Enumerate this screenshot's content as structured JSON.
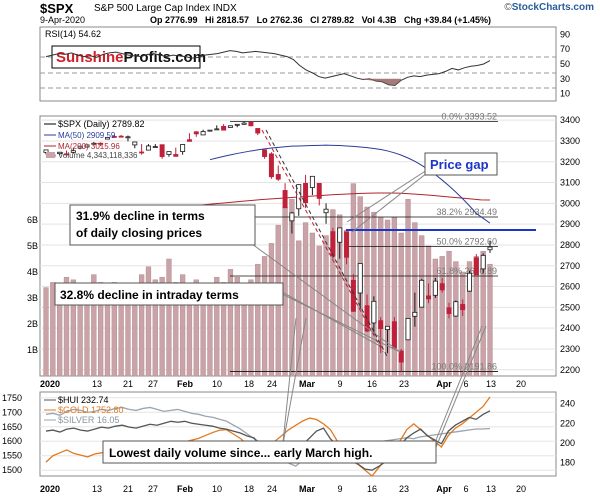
{
  "header": {
    "symbol": "$SPX",
    "name": "S&P 500 Large Cap Index",
    "exchange": "INDX",
    "date": "9-Apr-2020",
    "quote": "Op 2776.99   Hi 2818.57   Lo 2762.36   Cl 2789.82   Vol 4.3B   Chg +39.84 (+1.45%)",
    "brand_pre": "©",
    "brand": "StockCharts.com"
  },
  "rsi_panel": {
    "label": "RSI(14) 54.62",
    "watermark_a": "Sunshine",
    "watermark_b": "Profits.com",
    "ticks": [
      "90",
      "70",
      "50",
      "30",
      "10"
    ]
  },
  "main_panel": {
    "legend": [
      "$SPX (Daily) 2789.82",
      "MA(50) 2909.59",
      "MA(200) 3015.96",
      "Volume 4,343,118,336"
    ],
    "y_ticks": [
      "3400",
      "3300",
      "3200",
      "3100",
      "3000",
      "2900",
      "2800",
      "2700",
      "2600",
      "2500",
      "2400",
      "2300",
      "2200"
    ],
    "volume_ticks": [
      "6B",
      "5B",
      "4B",
      "3B",
      "2B",
      "1B"
    ],
    "fib_labels": [
      "0.0% 3393.52",
      "38.2% 2934.49",
      "50.0% 2792.60",
      "61.8% 2650.89",
      "100.0% 2191.86"
    ],
    "annotations": {
      "price_gap": "Price gap",
      "decline_closing_1": "31.9% decline in terms",
      "decline_closing_2": "of daily closing prices",
      "decline_intraday": "32.8% decline in intraday terms"
    }
  },
  "x_axis": [
    "2020",
    "13",
    "21",
    "27",
    "Feb",
    "10",
    "18",
    "24",
    "Mar",
    "9",
    "16",
    "23",
    "Apr",
    "6",
    "13",
    "20"
  ],
  "lower_panel": {
    "legend": [
      "$HUI 232.74",
      "$GOLD 1752.80",
      "$SILVER 16.05"
    ],
    "left_ticks": [
      "1750",
      "1700",
      "1650",
      "1600",
      "1550",
      "1500"
    ],
    "right_ticks": [
      "240",
      "220",
      "200",
      "180"
    ],
    "annotation": "Lowest daily volume since... early March high."
  },
  "colors": {
    "up": "#1a1a1a",
    "down": "#c0203a",
    "ma50": "#2a3c9a",
    "ma200": "#b0242e",
    "volume": "#c9a3a7",
    "hui": "#555555",
    "gold": "#e07a1f",
    "silver": "#9aa5b0",
    "gap_line": "#1a35c8",
    "gap_text": "#1a35c8"
  },
  "chart_data": [
    {
      "type": "line",
      "title": "RSI(14)",
      "ylim": [
        0,
        100
      ],
      "series": [
        {
          "name": "RSI(14) 54.62",
          "values": [
            60,
            62,
            64,
            63,
            65,
            62,
            60,
            61,
            59,
            63,
            65,
            66,
            64,
            62,
            61,
            60,
            63,
            64,
            62,
            60,
            62,
            61,
            60,
            58,
            59,
            62,
            63,
            64,
            66,
            68,
            67,
            65,
            66,
            67,
            66,
            65,
            64,
            62,
            60,
            56,
            48,
            42,
            38,
            33,
            31,
            33,
            35,
            37,
            34,
            31,
            29,
            30,
            27,
            26,
            22,
            21,
            28,
            32,
            34,
            33,
            35,
            36,
            37,
            40,
            44,
            42,
            45,
            47,
            48,
            50,
            54.62
          ]
        }
      ]
    },
    {
      "type": "candlestick",
      "title": "$SPX (Daily) 2789.82",
      "ylim": [
        2170,
        3420
      ],
      "candles": [
        {
          "o": 3245,
          "h": 3258,
          "l": 3235,
          "c": 3257
        },
        {
          "o": 3225,
          "h": 3246,
          "l": 3220,
          "c": 3234
        },
        {
          "o": 3239,
          "h": 3246,
          "l": 3232,
          "c": 3246
        },
        {
          "o": 3238,
          "h": 3254,
          "l": 3235,
          "c": 3237
        },
        {
          "o": 3245,
          "h": 3267,
          "l": 3239,
          "c": 3253
        },
        {
          "o": 3266,
          "h": 3276,
          "l": 3260,
          "c": 3275
        },
        {
          "o": 3271,
          "h": 3282,
          "l": 3268,
          "c": 3281
        },
        {
          "o": 3285,
          "h": 3295,
          "l": 3282,
          "c": 3289
        },
        {
          "o": 3289,
          "h": 3294,
          "l": 3275,
          "c": 3288
        },
        {
          "o": 3309,
          "h": 3318,
          "l": 3307,
          "c": 3317
        },
        {
          "o": 3322,
          "h": 3330,
          "l": 3317,
          "c": 3321
        },
        {
          "o": 3323,
          "h": 3329,
          "l": 3320,
          "c": 3321
        },
        {
          "o": 3316,
          "h": 3326,
          "l": 3298,
          "c": 3320
        },
        {
          "o": 3281,
          "h": 3296,
          "l": 3265,
          "c": 3295
        },
        {
          "o": 3247,
          "h": 3285,
          "l": 3234,
          "c": 3244
        },
        {
          "o": 3256,
          "h": 3285,
          "l": 3255,
          "c": 3276
        },
        {
          "o": 3271,
          "h": 3285,
          "l": 3270,
          "c": 3273
        },
        {
          "o": 3282,
          "h": 3282,
          "l": 3214,
          "c": 3225
        },
        {
          "o": 3235,
          "h": 3247,
          "l": 3224,
          "c": 3249
        },
        {
          "o": 3235,
          "h": 3268,
          "l": 3235,
          "c": 3226
        },
        {
          "o": 3249,
          "h": 3285,
          "l": 3234,
          "c": 3283
        },
        {
          "o": 3306,
          "h": 3337,
          "l": 3300,
          "c": 3298
        },
        {
          "o": 3344,
          "h": 3347,
          "l": 3320,
          "c": 3334
        },
        {
          "o": 3329,
          "h": 3354,
          "l": 3329,
          "c": 3345
        },
        {
          "o": 3348,
          "h": 3352,
          "l": 3345,
          "c": 3352
        },
        {
          "o": 3358,
          "h": 3375,
          "l": 3355,
          "c": 3358
        },
        {
          "o": 3370,
          "h": 3381,
          "l": 3356,
          "c": 3352
        },
        {
          "o": 3365,
          "h": 3375,
          "l": 3366,
          "c": 3373
        },
        {
          "o": 3378,
          "h": 3381,
          "l": 3366,
          "c": 3380
        },
        {
          "o": 3380,
          "h": 3393,
          "l": 3378,
          "c": 3386
        },
        {
          "o": 3390,
          "h": 3393,
          "l": 3370,
          "c": 3373
        },
        {
          "o": 3360,
          "h": 3361,
          "l": 3328,
          "c": 3338
        },
        {
          "o": 3257,
          "h": 3259,
          "l": 3214,
          "c": 3225
        },
        {
          "o": 3238,
          "h": 3246,
          "l": 3118,
          "c": 3128
        },
        {
          "o": 3139,
          "h": 3182,
          "l": 3108,
          "c": 3116
        },
        {
          "o": 3062,
          "h": 3097,
          "l": 2977,
          "c": 2979
        },
        {
          "o": 2916,
          "h": 2959,
          "l": 2855,
          "c": 2954
        },
        {
          "o": 2974,
          "h": 3091,
          "l": 2940,
          "c": 3090
        },
        {
          "o": 3096,
          "h": 3137,
          "l": 2977,
          "c": 3003
        },
        {
          "o": 3076,
          "h": 3131,
          "l": 3040,
          "c": 3130
        },
        {
          "o": 3096,
          "h": 3098,
          "l": 2990,
          "c": 3024
        },
        {
          "o": 2955,
          "h": 3000,
          "l": 2902,
          "c": 2972
        },
        {
          "o": 2864,
          "h": 2883,
          "l": 2734,
          "c": 2747
        },
        {
          "o": 2813,
          "h": 2882,
          "l": 2734,
          "c": 2882
        },
        {
          "o": 2863,
          "h": 2863,
          "l": 2707,
          "c": 2741
        },
        {
          "o": 2630,
          "h": 2660,
          "l": 2478,
          "c": 2481
        },
        {
          "o": 2569,
          "h": 2711,
          "l": 2492,
          "c": 2711
        },
        {
          "o": 2508,
          "h": 2562,
          "l": 2381,
          "c": 2386
        },
        {
          "o": 2425,
          "h": 2553,
          "l": 2367,
          "c": 2529
        },
        {
          "o": 2436,
          "h": 2453,
          "l": 2281,
          "c": 2398
        },
        {
          "o": 2393,
          "h": 2410,
          "l": 2280,
          "c": 2409
        },
        {
          "o": 2431,
          "h": 2453,
          "l": 2295,
          "c": 2305
        },
        {
          "o": 2290,
          "h": 2300,
          "l": 2192,
          "c": 2237
        },
        {
          "o": 2344,
          "h": 2449,
          "l": 2344,
          "c": 2447
        },
        {
          "o": 2457,
          "h": 2571,
          "l": 2407,
          "c": 2476
        },
        {
          "o": 2501,
          "h": 2637,
          "l": 2500,
          "c": 2630
        },
        {
          "o": 2555,
          "h": 2615,
          "l": 2520,
          "c": 2541
        },
        {
          "o": 2558,
          "h": 2641,
          "l": 2545,
          "c": 2626
        },
        {
          "o": 2614,
          "h": 2641,
          "l": 2571,
          "c": 2584
        },
        {
          "o": 2498,
          "h": 2522,
          "l": 2447,
          "c": 2470
        },
        {
          "o": 2458,
          "h": 2533,
          "l": 2455,
          "c": 2527
        },
        {
          "o": 2514,
          "h": 2538,
          "l": 2459,
          "c": 2489
        },
        {
          "o": 2578,
          "h": 2676,
          "l": 2575,
          "c": 2664
        },
        {
          "o": 2738,
          "h": 2756,
          "l": 2657,
          "c": 2657
        },
        {
          "o": 2685,
          "h": 2760,
          "l": 2663,
          "c": 2750
        },
        {
          "o": 2777,
          "h": 2819,
          "l": 2762,
          "c": 2790
        }
      ],
      "ma50": [
        3210,
        3218,
        3226,
        3233,
        3240,
        3246,
        3252,
        3257,
        3262,
        3266,
        3269,
        3272,
        3275,
        3276,
        3277,
        3278,
        3279,
        3280,
        3279,
        3278,
        3276,
        3274,
        3271,
        3268,
        3264,
        3259,
        3252,
        3243,
        3232,
        3218,
        3202,
        3183,
        3162,
        3138,
        3112,
        3084,
        3054,
        3022,
        2988,
        2952,
        2928,
        2905
      ],
      "ma200": [
        2990,
        2994,
        2998,
        3002,
        3006,
        3010,
        3014,
        3018,
        3021,
        3024,
        3027,
        3030,
        3033,
        3036,
        3039,
        3042,
        3044,
        3046,
        3048,
        3049,
        3050,
        3050,
        3049,
        3047,
        3044,
        3041,
        3037,
        3033,
        3029,
        3025,
        3021,
        3017,
        3016
      ],
      "volume_billions": [
        3.4,
        3.6,
        3.5,
        3.8,
        3.7,
        3.4,
        3.5,
        3.9,
        3.6,
        3.4,
        3.6,
        3.2,
        3.3,
        3.5,
        3.9,
        4.2,
        3.7,
        3.8,
        4.5,
        3.6,
        3.9,
        3.5,
        3.7,
        3.4,
        3.5,
        3.8,
        3.6,
        4.1,
        3.8,
        3.3,
        3.7,
        4.3,
        4.6,
        5.1,
        5.8,
        6.5,
        6.8,
        5.2,
        5.9,
        5.5,
        5.0,
        5.4,
        6.4,
        6.2,
        5.6,
        7.4,
        6.9,
        6.5,
        6.3,
        6.1,
        6.0,
        6.1,
        5.5,
        6.8,
        5.9,
        5.4,
        5.0,
        4.5,
        4.6,
        4.8,
        4.4,
        4.0,
        4.4,
        4.6,
        4.8,
        4.3
      ],
      "fibonacci": [
        {
          "label": "0.0% 3393.52",
          "value": 3393.52
        },
        {
          "label": "38.2% 2934.49",
          "value": 2934.49
        },
        {
          "label": "50.0% 2792.60",
          "value": 2792.6
        },
        {
          "label": "61.8% 2650.89",
          "value": 2650.89
        },
        {
          "label": "100.0% 2191.86",
          "value": 2191.86
        }
      ]
    },
    {
      "type": "line",
      "title": "$HUI / $GOLD / $SILVER",
      "series": [
        {
          "name": "$HUI 232.74",
          "values": [
            212,
            213,
            211,
            214,
            215,
            213,
            212,
            214,
            216,
            215,
            217,
            218,
            216,
            215,
            217,
            219,
            218,
            220,
            222,
            221,
            222,
            220,
            219,
            218,
            217,
            215,
            214,
            212,
            210,
            207,
            205,
            196,
            189,
            186,
            183,
            181,
            190,
            198,
            205,
            212,
            215,
            204,
            197,
            192,
            185,
            178,
            173,
            172,
            176,
            181,
            188,
            197,
            205,
            210,
            214,
            207,
            203,
            199,
            212,
            218,
            222,
            226,
            224,
            229,
            232.74
          ]
        },
        {
          "name": "$GOLD 1752.80",
          "values": [
            1528,
            1550,
            1560,
            1570,
            1558,
            1552,
            1546,
            1556,
            1560,
            1564,
            1572,
            1575,
            1570,
            1578,
            1584,
            1588,
            1580,
            1576,
            1582,
            1590,
            1598,
            1604,
            1610,
            1620,
            1630,
            1638,
            1640,
            1625,
            1610,
            1590,
            1575,
            1570,
            1585,
            1600,
            1620,
            1640,
            1655,
            1670,
            1680,
            1675,
            1660,
            1640,
            1600,
            1560,
            1530,
            1520,
            1500,
            1480,
            1510,
            1540,
            1560,
            1600,
            1640,
            1660,
            1640,
            1620,
            1600,
            1580,
            1620,
            1645,
            1660,
            1680,
            1700,
            1720,
            1752.8
          ]
        },
        {
          "name": "$SILVER 16.05",
          "values": [
            17.5,
            17.6,
            17.4,
            17.8,
            18.0,
            17.9,
            17.7,
            17.8,
            18.0,
            17.9,
            18.1,
            18.2,
            18.0,
            17.9,
            18.1,
            18.2,
            18.0,
            17.8,
            17.9,
            18.0,
            17.8,
            17.6,
            17.5,
            17.3,
            17.2,
            17.0,
            16.8,
            16.4,
            16.0,
            15.5,
            15.0,
            14.6,
            14.0,
            13.5,
            13.0,
            12.5,
            12.2,
            12.8,
            13.5,
            14.0,
            14.3,
            14.2,
            14.0,
            13.8,
            13.9,
            14.1,
            14.3,
            14.5,
            14.7,
            14.8,
            14.9,
            15.0,
            15.1,
            15.0,
            15.2,
            15.3,
            15.4,
            15.5,
            15.6,
            15.7,
            15.8,
            15.9,
            16.0,
            16.0,
            16.05
          ]
        }
      ]
    }
  ]
}
